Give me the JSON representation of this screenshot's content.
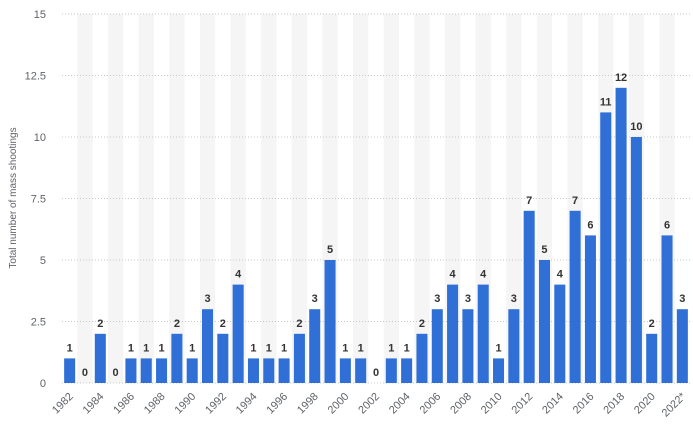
{
  "chart_data": {
    "type": "bar",
    "title": "",
    "xlabel": "",
    "ylabel": "Total number of mass shootings",
    "ylim": [
      0,
      15
    ],
    "yticks": [
      "0",
      "2.5",
      "5",
      "7.5",
      "10",
      "12.5",
      "15"
    ],
    "grid": true,
    "categories": [
      "1982",
      "1983",
      "1984",
      "1985",
      "1986",
      "1987",
      "1988",
      "1989",
      "1990",
      "1991",
      "1992",
      "1993",
      "1994",
      "1995",
      "1996",
      "1997",
      "1998",
      "1999",
      "2000",
      "2001",
      "2002",
      "2003",
      "2004",
      "2005",
      "2006",
      "2007",
      "2008",
      "2009",
      "2010",
      "2011",
      "2012",
      "2013",
      "2014",
      "2015",
      "2016",
      "2017",
      "2018",
      "2019",
      "2020",
      "2021",
      "2022*"
    ],
    "xtick_labels_shown": [
      "1982",
      "1984",
      "1986",
      "1988",
      "1990",
      "1992",
      "1994",
      "1996",
      "1998",
      "2000",
      "2002",
      "2004",
      "2006",
      "2008",
      "2010",
      "2012",
      "2014",
      "2016",
      "2018",
      "2020",
      "2022*"
    ],
    "values": [
      1,
      0,
      2,
      0,
      1,
      1,
      1,
      2,
      1,
      3,
      2,
      4,
      1,
      1,
      1,
      2,
      3,
      5,
      1,
      1,
      0,
      1,
      1,
      2,
      3,
      4,
      3,
      4,
      1,
      3,
      7,
      5,
      4,
      7,
      6,
      11,
      12,
      10,
      2,
      6,
      3
    ],
    "colors": {
      "bar": "#2f6fd6",
      "grid": "#c8c8c8",
      "band": "#f5f5f5"
    }
  }
}
